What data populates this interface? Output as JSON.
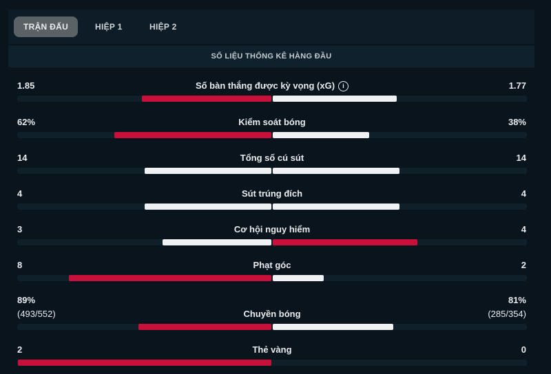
{
  "tabs": [
    {
      "label": "TRẬN ĐẤU",
      "active": true
    },
    {
      "label": "HIỆP 1",
      "active": false
    },
    {
      "label": "HIỆP 2",
      "active": false
    }
  ],
  "section_title": "SỐ LIỆU THỐNG KÊ HÀNG ĐẦU",
  "colors": {
    "highlight": "#c8103a",
    "neutral": "#f0f1f2",
    "track": "#0f202b",
    "background": "#0a141c"
  },
  "stats": [
    {
      "label": "Số bàn thắng được kỳ vọng (xG)",
      "info_icon": "info-icon",
      "left": "1.85",
      "right": "1.77",
      "left_value": 1.85,
      "right_value": 1.77
    },
    {
      "label": "Kiểm soát bóng",
      "left": "62%",
      "right": "38%",
      "left_value": 62,
      "right_value": 38
    },
    {
      "label": "Tổng số cú sút",
      "left": "14",
      "right": "14",
      "left_value": 14,
      "right_value": 14
    },
    {
      "label": "Sút trúng đích",
      "left": "4",
      "right": "4",
      "left_value": 4,
      "right_value": 4
    },
    {
      "label": "Cơ hội nguy hiểm",
      "left": "3",
      "right": "4",
      "left_value": 3,
      "right_value": 4
    },
    {
      "label": "Phạt góc",
      "left": "8",
      "right": "2",
      "left_value": 8,
      "right_value": 2
    },
    {
      "label": "Chuyền bóng",
      "left": "89%",
      "left_sub": "(493/552)",
      "right": "81%",
      "right_sub": "(285/354)",
      "left_value": 89,
      "right_value": 81
    },
    {
      "label": "Thẻ vàng",
      "left": "2",
      "right": "0",
      "left_value": 2,
      "right_value": 0
    }
  ]
}
